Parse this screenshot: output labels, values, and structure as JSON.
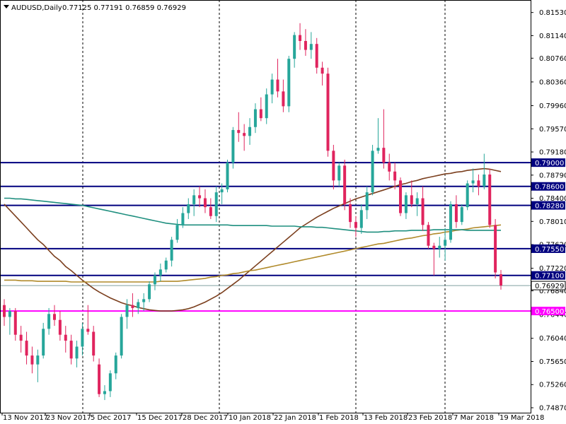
{
  "header": {
    "symbol": "AUDUSD,Daily",
    "ohlc": "0.77125 0.77191 0.76859 0.76929"
  },
  "colors": {
    "bull": "#26a69a",
    "bear": "#e0245e",
    "support_line": "#00007f",
    "magenta_line": "#ff00ff",
    "ma_fast": "#7b3f1e",
    "ma_mid": "#b08a2a",
    "ma_slow": "#1f8f7f"
  },
  "chart_data": {
    "type": "candlestick",
    "title": "AUDUSD,Daily",
    "ylim": [
      0.7487,
      0.8155
    ],
    "y_ticks": [
      "0.81530",
      "0.81140",
      "0.80760",
      "0.80360",
      "0.79960",
      "0.79570",
      "0.79180",
      "0.78790",
      "0.78400",
      "0.78010",
      "0.77620",
      "0.77220",
      "0.76840",
      "0.76440",
      "0.76040",
      "0.75650",
      "0.75260",
      "0.74870"
    ],
    "x_labels": [
      "13 Nov 2017",
      "23 Nov 2017",
      "5 Dec 2017",
      "15 Dec 2017",
      "28 Dec 2017",
      "10 Jan 2018",
      "22 Jan 2018",
      "1 Feb 2018",
      "13 Feb 2018",
      "23 Feb 2018",
      "7 Mar 2018",
      "19 Mar 2018"
    ],
    "vertical_separators": [
      "23 Nov 2017",
      "28 Dec 2017",
      "1 Feb 2018",
      "23 Feb 2018"
    ],
    "horizontal_levels": [
      {
        "label": "0.79000",
        "value": 0.79,
        "color": "#00007f"
      },
      {
        "label": "0.78600",
        "value": 0.786,
        "color": "#00007f"
      },
      {
        "label": "0.78280",
        "value": 0.7828,
        "color": "#00007f"
      },
      {
        "label": "0.77550",
        "value": 0.7755,
        "color": "#00007f"
      },
      {
        "label": "0.77100",
        "value": 0.771,
        "color": "#00007f"
      },
      {
        "label": "0.76500",
        "value": 0.765,
        "color": "#ff00ff"
      }
    ],
    "current_price": {
      "label": "0.76929",
      "value": 0.76929
    },
    "candles": [
      [
        0.766,
        0.767,
        0.7625,
        0.764
      ],
      [
        0.764,
        0.7655,
        0.761,
        0.765
      ],
      [
        0.765,
        0.7655,
        0.76,
        0.761
      ],
      [
        0.761,
        0.7625,
        0.758,
        0.76
      ],
      [
        0.76,
        0.7615,
        0.756,
        0.7575
      ],
      [
        0.7575,
        0.759,
        0.7545,
        0.756
      ],
      [
        0.756,
        0.7585,
        0.753,
        0.7575
      ],
      [
        0.7575,
        0.763,
        0.757,
        0.762
      ],
      [
        0.762,
        0.7655,
        0.761,
        0.7645
      ],
      [
        0.7645,
        0.766,
        0.7625,
        0.7635
      ],
      [
        0.7635,
        0.765,
        0.76,
        0.761
      ],
      [
        0.761,
        0.7625,
        0.758,
        0.76
      ],
      [
        0.76,
        0.761,
        0.756,
        0.757
      ],
      [
        0.757,
        0.76,
        0.7555,
        0.759
      ],
      [
        0.759,
        0.763,
        0.7575,
        0.762
      ],
      [
        0.762,
        0.766,
        0.761,
        0.7615
      ],
      [
        0.7615,
        0.7625,
        0.7565,
        0.7575
      ],
      [
        0.756,
        0.757,
        0.7505,
        0.751
      ],
      [
        0.751,
        0.7525,
        0.75,
        0.7515
      ],
      [
        0.7515,
        0.755,
        0.7505,
        0.7545
      ],
      [
        0.7545,
        0.758,
        0.7535,
        0.7575
      ],
      [
        0.7575,
        0.7645,
        0.757,
        0.764
      ],
      [
        0.764,
        0.767,
        0.762,
        0.766
      ],
      [
        0.766,
        0.768,
        0.764,
        0.7655
      ],
      [
        0.7655,
        0.767,
        0.7645,
        0.7665
      ],
      [
        0.7665,
        0.768,
        0.765,
        0.767
      ],
      [
        0.767,
        0.77,
        0.7665,
        0.7695
      ],
      [
        0.7695,
        0.7715,
        0.7685,
        0.771
      ],
      [
        0.771,
        0.773,
        0.77,
        0.772
      ],
      [
        0.772,
        0.774,
        0.7715,
        0.7735
      ],
      [
        0.7735,
        0.7775,
        0.7725,
        0.777
      ],
      [
        0.777,
        0.7805,
        0.7765,
        0.7795
      ],
      [
        0.7795,
        0.7825,
        0.779,
        0.7815
      ],
      [
        0.7815,
        0.784,
        0.7805,
        0.783
      ],
      [
        0.783,
        0.7855,
        0.781,
        0.7845
      ],
      [
        0.7845,
        0.786,
        0.7825,
        0.784
      ],
      [
        0.784,
        0.7855,
        0.7815,
        0.7825
      ],
      [
        0.7825,
        0.784,
        0.7805,
        0.781
      ],
      [
        0.781,
        0.786,
        0.78,
        0.785
      ],
      [
        0.785,
        0.7865,
        0.783,
        0.7855
      ],
      [
        0.7855,
        0.7905,
        0.785,
        0.79
      ],
      [
        0.79,
        0.796,
        0.789,
        0.7955
      ],
      [
        0.7955,
        0.7985,
        0.7935,
        0.795
      ],
      [
        0.795,
        0.7965,
        0.792,
        0.7945
      ],
      [
        0.7945,
        0.7975,
        0.793,
        0.796
      ],
      [
        0.796,
        0.8,
        0.795,
        0.799
      ],
      [
        0.799,
        0.801,
        0.797,
        0.7975
      ],
      [
        0.7975,
        0.8025,
        0.7965,
        0.8015
      ],
      [
        0.8015,
        0.805,
        0.8,
        0.804
      ],
      [
        0.804,
        0.8075,
        0.801,
        0.802
      ],
      [
        0.802,
        0.804,
        0.7985,
        0.7995
      ],
      [
        0.7995,
        0.808,
        0.7985,
        0.8075
      ],
      [
        0.8075,
        0.812,
        0.806,
        0.8115
      ],
      [
        0.8115,
        0.8135,
        0.809,
        0.8105
      ],
      [
        0.8105,
        0.8125,
        0.808,
        0.809
      ],
      [
        0.809,
        0.812,
        0.8075,
        0.81
      ],
      [
        0.81,
        0.811,
        0.805,
        0.806
      ],
      [
        0.806,
        0.807,
        0.803,
        0.805
      ],
      [
        0.805,
        0.806,
        0.791,
        0.792
      ],
      [
        0.792,
        0.793,
        0.7855,
        0.787
      ],
      [
        0.787,
        0.79,
        0.786,
        0.7895
      ],
      [
        0.7895,
        0.7905,
        0.782,
        0.783
      ],
      [
        0.783,
        0.784,
        0.779,
        0.78
      ],
      [
        0.78,
        0.781,
        0.7775,
        0.779
      ],
      [
        0.779,
        0.783,
        0.778,
        0.782
      ],
      [
        0.782,
        0.786,
        0.7805,
        0.785
      ],
      [
        0.785,
        0.793,
        0.7845,
        0.792
      ],
      [
        0.792,
        0.7975,
        0.7915,
        0.7925
      ],
      [
        0.7925,
        0.799,
        0.789,
        0.79
      ],
      [
        0.79,
        0.7915,
        0.787,
        0.7885
      ],
      [
        0.7885,
        0.79,
        0.7855,
        0.787
      ],
      [
        0.787,
        0.7875,
        0.781,
        0.7815
      ],
      [
        0.7815,
        0.785,
        0.7805,
        0.7845
      ],
      [
        0.7845,
        0.787,
        0.7825,
        0.783
      ],
      [
        0.783,
        0.785,
        0.781,
        0.784
      ],
      [
        0.784,
        0.786,
        0.7785,
        0.7795
      ],
      [
        0.7795,
        0.78,
        0.7755,
        0.776
      ],
      [
        0.776,
        0.7765,
        0.771,
        0.7755
      ],
      [
        0.7755,
        0.7775,
        0.774,
        0.776
      ],
      [
        0.776,
        0.779,
        0.7735,
        0.777
      ],
      [
        0.777,
        0.7835,
        0.7765,
        0.783
      ],
      [
        0.783,
        0.7845,
        0.779,
        0.78
      ],
      [
        0.78,
        0.783,
        0.7795,
        0.7825
      ],
      [
        0.7825,
        0.787,
        0.782,
        0.7865
      ],
      [
        0.7865,
        0.789,
        0.785,
        0.787
      ],
      [
        0.787,
        0.788,
        0.7845,
        0.786
      ],
      [
        0.786,
        0.7915,
        0.7855,
        0.788
      ],
      [
        0.788,
        0.789,
        0.779,
        0.7795
      ],
      [
        0.7795,
        0.7805,
        0.7705,
        0.7715
      ],
      [
        0.7712,
        0.7719,
        0.7686,
        0.7693
      ]
    ],
    "moving_averages": [
      {
        "color": "#7b3f1e",
        "values": [
          0.783,
          0.782,
          0.781,
          0.78,
          0.779,
          0.778,
          0.777,
          0.7762,
          0.7752,
          0.7742,
          0.7735,
          0.7725,
          0.7718,
          0.771,
          0.7702,
          0.7695,
          0.7688,
          0.7682,
          0.7677,
          0.7672,
          0.7668,
          0.7664,
          0.7661,
          0.7659,
          0.7656,
          0.7654,
          0.7652,
          0.7651,
          0.765,
          0.765,
          0.765,
          0.7651,
          0.7652,
          0.7654,
          0.7657,
          0.7661,
          0.7665,
          0.767,
          0.7675,
          0.7681,
          0.7688,
          0.7695,
          0.7702,
          0.771,
          0.7718,
          0.7726,
          0.7734,
          0.7742,
          0.775,
          0.7758,
          0.7766,
          0.7774,
          0.7782,
          0.779,
          0.7796,
          0.7802,
          0.7808,
          0.7813,
          0.7818,
          0.7823,
          0.7827,
          0.7831,
          0.7835,
          0.7839,
          0.7842,
          0.7845,
          0.7848,
          0.7851,
          0.7854,
          0.7857,
          0.786,
          0.7863,
          0.7865,
          0.7868,
          0.787,
          0.7873,
          0.7875,
          0.7877,
          0.7879,
          0.7881,
          0.7882,
          0.7884,
          0.7885,
          0.7887,
          0.7888,
          0.7889,
          0.789,
          0.7889,
          0.7887,
          0.7885
        ]
      },
      {
        "color": "#b08a2a",
        "values": [
          0.7702,
          0.7702,
          0.7702,
          0.7701,
          0.7701,
          0.7701,
          0.77,
          0.77,
          0.77,
          0.77,
          0.77,
          0.77,
          0.7699,
          0.7699,
          0.7699,
          0.7699,
          0.7699,
          0.7699,
          0.7699,
          0.7699,
          0.7699,
          0.7699,
          0.7699,
          0.7699,
          0.7699,
          0.7699,
          0.7699,
          0.7699,
          0.77,
          0.77,
          0.77,
          0.77,
          0.7701,
          0.7702,
          0.7703,
          0.7704,
          0.7705,
          0.7707,
          0.7708,
          0.771,
          0.7711,
          0.7713,
          0.7714,
          0.7716,
          0.7718,
          0.7719,
          0.7721,
          0.7723,
          0.7725,
          0.7727,
          0.7729,
          0.7731,
          0.7733,
          0.7735,
          0.7737,
          0.7739,
          0.7741,
          0.7743,
          0.7745,
          0.7747,
          0.7749,
          0.7751,
          0.7753,
          0.7755,
          0.7757,
          0.7759,
          0.7761,
          0.7763,
          0.7764,
          0.7766,
          0.7768,
          0.777,
          0.7772,
          0.7773,
          0.7775,
          0.7777,
          0.7778,
          0.778,
          0.7781,
          0.7783,
          0.7784,
          0.7786,
          0.7787,
          0.7788,
          0.779,
          0.7791,
          0.7792,
          0.7793,
          0.7794,
          0.7795
        ]
      },
      {
        "color": "#1f8f7f",
        "values": [
          0.784,
          0.784,
          0.7839,
          0.7839,
          0.7838,
          0.7837,
          0.7836,
          0.7835,
          0.7834,
          0.7833,
          0.7832,
          0.7831,
          0.783,
          0.7829,
          0.7828,
          0.7826,
          0.7824,
          0.7822,
          0.782,
          0.7818,
          0.7816,
          0.7814,
          0.7812,
          0.781,
          0.7808,
          0.7806,
          0.7804,
          0.7802,
          0.78,
          0.7798,
          0.7797,
          0.7796,
          0.7795,
          0.7795,
          0.7795,
          0.7795,
          0.7795,
          0.7795,
          0.7795,
          0.7795,
          0.7795,
          0.7794,
          0.7794,
          0.7794,
          0.7794,
          0.7794,
          0.7794,
          0.7794,
          0.7793,
          0.7793,
          0.7793,
          0.7793,
          0.7793,
          0.7792,
          0.7792,
          0.7792,
          0.7791,
          0.7791,
          0.779,
          0.7789,
          0.7788,
          0.7787,
          0.7786,
          0.7785,
          0.7784,
          0.7783,
          0.7783,
          0.7783,
          0.7784,
          0.7784,
          0.7785,
          0.7785,
          0.7785,
          0.7786,
          0.7786,
          0.7786,
          0.7786,
          0.7787,
          0.7787,
          0.7787,
          0.7787,
          0.7787,
          0.7787,
          0.7786,
          0.7786,
          0.7786,
          0.7786,
          0.7786,
          0.7786,
          0.7786
        ]
      }
    ]
  }
}
